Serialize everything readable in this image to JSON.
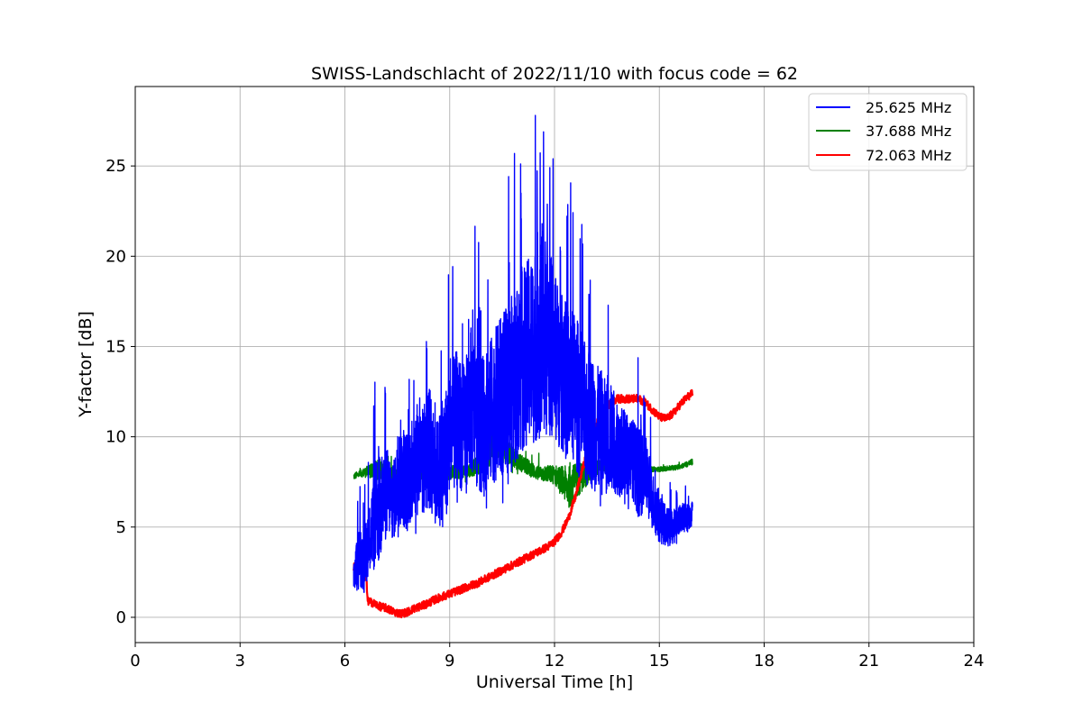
{
  "chart_data": {
    "type": "line",
    "title": "SWISS-Landschlacht of 2022/11/10 with focus code = 62",
    "xlabel": "Universal Time [h]",
    "ylabel": "Y-factor [dB]",
    "xlim": [
      0,
      24
    ],
    "ylim": [
      -1.4,
      29.4
    ],
    "xticks": [
      0,
      3,
      6,
      9,
      12,
      15,
      18,
      21,
      24
    ],
    "xtick_labels": [
      "0",
      "3",
      "6",
      "9",
      "12",
      "15",
      "18",
      "21",
      "24"
    ],
    "yticks": [
      0,
      5,
      10,
      15,
      20,
      25
    ],
    "ytick_labels": [
      "0",
      "5",
      "10",
      "15",
      "20",
      "25"
    ],
    "grid": true,
    "legend_position": "top-right",
    "series": [
      {
        "name": "25.625 MHz",
        "color": "#0000ff",
        "x": [
          6.25,
          6.4,
          6.55,
          6.7,
          6.85,
          7.0,
          7.2,
          7.4,
          7.6,
          7.8,
          8.0,
          8.2,
          8.4,
          8.6,
          8.8,
          9.0,
          9.2,
          9.4,
          9.6,
          9.8,
          10.0,
          10.2,
          10.4,
          10.6,
          10.8,
          11.0,
          11.2,
          11.4,
          11.6,
          11.8,
          12.0,
          12.2,
          12.4,
          12.6,
          12.8,
          13.0,
          13.2,
          13.4,
          13.6,
          13.8,
          14.0,
          14.2,
          14.4,
          14.6,
          14.8,
          15.0,
          15.2,
          15.4,
          15.6,
          15.8,
          15.95
        ],
        "mean": [
          2.2,
          3.5,
          3.0,
          4.5,
          5.5,
          6.0,
          7.0,
          6.5,
          8.0,
          7.5,
          9.0,
          8.5,
          9.5,
          8.0,
          8.5,
          10.0,
          11.0,
          10.5,
          12.0,
          11.0,
          10.5,
          11.5,
          12.0,
          12.5,
          13.0,
          14.0,
          14.5,
          15.0,
          16.0,
          15.5,
          14.5,
          13.5,
          13.0,
          12.5,
          11.5,
          11.0,
          10.5,
          10.0,
          10.0,
          9.5,
          9.0,
          9.0,
          8.0,
          8.0,
          6.5,
          5.5,
          5.0,
          5.0,
          5.5,
          5.5,
          5.8
        ],
        "amplitude": [
          1.5,
          3.0,
          3.0,
          3.5,
          5.5,
          5.5,
          4.5,
          4.0,
          5.5,
          5.0,
          6.0,
          5.5,
          6.5,
          5.0,
          6.5,
          7.0,
          7.0,
          6.5,
          7.5,
          7.0,
          7.0,
          7.5,
          8.0,
          8.5,
          9.0,
          9.0,
          9.5,
          10.0,
          11.0,
          10.0,
          8.5,
          8.0,
          8.0,
          8.0,
          7.5,
          7.0,
          6.5,
          6.0,
          5.5,
          5.0,
          4.5,
          4.0,
          4.5,
          4.0,
          3.0,
          2.5,
          2.0,
          1.8,
          1.5,
          1.5,
          1.2
        ]
      },
      {
        "name": "37.688 MHz",
        "color": "#008000",
        "x": [
          6.25,
          6.5,
          7.0,
          7.5,
          8.0,
          8.5,
          9.0,
          9.5,
          10.0,
          10.3,
          10.6,
          11.0,
          11.5,
          12.0,
          12.4,
          12.8,
          13.2,
          13.6,
          14.0,
          14.5,
          15.0,
          15.5,
          15.95
        ],
        "mean": [
          7.8,
          8.0,
          8.2,
          7.8,
          7.9,
          8.3,
          8.0,
          8.1,
          8.6,
          9.8,
          9.2,
          8.6,
          8.0,
          7.9,
          7.2,
          7.8,
          8.3,
          8.6,
          8.3,
          8.2,
          8.2,
          8.3,
          8.6
        ],
        "amplitude": [
          0.4,
          0.5,
          1.3,
          0.7,
          0.8,
          1.2,
          0.9,
          0.8,
          1.4,
          2.2,
          1.6,
          1.1,
          0.9,
          1.2,
          2.6,
          1.8,
          1.0,
          0.8,
          0.4,
          0.3,
          0.3,
          0.3,
          0.4
        ]
      },
      {
        "name": "72.063 MHz",
        "color": "#ff0000",
        "x": [
          6.25,
          6.45,
          6.6,
          6.65,
          6.8,
          7.0,
          7.2,
          7.4,
          7.6,
          7.8,
          8.0,
          8.3,
          8.6,
          9.0,
          9.4,
          9.8,
          10.2,
          10.6,
          11.0,
          11.4,
          11.8,
          12.0,
          12.2,
          12.4,
          12.6,
          12.8,
          13.0,
          13.2,
          13.4,
          13.6,
          13.8,
          14.0,
          14.2,
          14.4,
          14.6,
          14.8,
          15.0,
          15.2,
          15.4,
          15.6,
          15.8,
          15.95
        ],
        "y": [
          2.8,
          2.7,
          2.6,
          0.9,
          0.8,
          0.6,
          0.5,
          0.3,
          0.2,
          0.3,
          0.5,
          0.7,
          1.0,
          1.3,
          1.6,
          1.9,
          2.3,
          2.7,
          3.1,
          3.5,
          3.9,
          4.2,
          4.7,
          5.5,
          6.7,
          8.2,
          9.6,
          10.7,
          11.4,
          11.9,
          12.1,
          12.1,
          12.1,
          12.1,
          11.9,
          11.5,
          11.1,
          11.0,
          11.3,
          11.8,
          12.2,
          12.4
        ]
      }
    ]
  }
}
